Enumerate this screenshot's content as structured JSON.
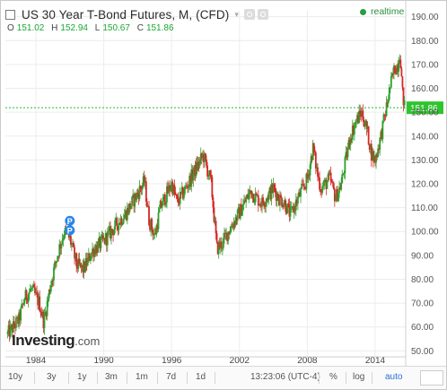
{
  "header": {
    "title": "US 30 Year T-Bond Futures, M, (CFD)",
    "caret_glyph": "▾",
    "realtime": "realtime"
  },
  "ohlc": {
    "o_label": "O",
    "o": "151.02",
    "h_label": "H",
    "h": "152.94",
    "l_label": "L",
    "l": "150.67",
    "c_label": "C",
    "c": "151.86"
  },
  "logo": {
    "name": "Investing",
    "suffix": ".com"
  },
  "bottom_bar": {
    "ranges": [
      "10y",
      "3y",
      "1y",
      "3m",
      "1m",
      "7d",
      "1d"
    ],
    "time": "13:23:06 (UTC-4)",
    "percent": "%",
    "log": "log",
    "auto": "auto"
  },
  "chart_data": {
    "type": "candlestick",
    "symbol": "US 30 Year T-Bond Futures",
    "interval": "M",
    "x_tick_labels": [
      "1984",
      "1990",
      "1996",
      "2002",
      "2008",
      "2014"
    ],
    "x_tick_years": [
      1984,
      1990,
      1996,
      2002,
      2008,
      2014
    ],
    "x_range": [
      1981.3,
      2016.7
    ],
    "y_ticks": [
      50,
      60,
      70,
      80,
      90,
      100,
      110,
      120,
      130,
      140,
      150,
      160,
      170,
      180,
      190
    ],
    "y_tick_labels": [
      "50.00",
      "60.00",
      "70.00",
      "80.00",
      "90.00",
      "100.00",
      "110.00",
      "120.00",
      "130.00",
      "140.00",
      "150.00",
      "160.00",
      "170.00",
      "180.00",
      "190.00"
    ],
    "ylim": [
      47.5,
      192.5
    ],
    "last_price": 151.86,
    "last_price_label": "151.86",
    "grid": true,
    "up_color": "#2ca02c",
    "down_color": "#d62728",
    "price_line_color": "#22bb33",
    "markers": [
      {
        "label": "P",
        "year": 1987.0,
        "value": 104.5
      },
      {
        "label": "P",
        "year": 1987.0,
        "value": 100.5
      }
    ],
    "path_years": [
      1981.5,
      1982.5,
      1983.0,
      1983.6,
      1984.3,
      1984.7,
      1985.3,
      1986.0,
      1986.5,
      1987.0,
      1987.6,
      1988.2,
      1989.0,
      1990.0,
      1991.0,
      1992.0,
      1993.0,
      1993.6,
      1994.0,
      1994.5,
      1995.0,
      1996.0,
      1996.5,
      1997.0,
      1998.0,
      1998.8,
      1999.5,
      2000.0,
      2000.5,
      2001.0,
      2002.0,
      2003.0,
      2003.5,
      2004.0,
      2005.0,
      2005.5,
      2006.0,
      2006.5,
      2007.0,
      2008.0,
      2008.5,
      2008.9,
      2009.2,
      2010.0,
      2010.5,
      2011.0,
      2011.8,
      2012.3,
      2012.8,
      2013.3,
      2013.7,
      2014.0,
      2014.5,
      2015.0,
      2015.3,
      2015.7,
      2016.0,
      2016.2,
      2016.4,
      2016.6
    ],
    "path_values": [
      57,
      63,
      72,
      76,
      70,
      62,
      78,
      92,
      100,
      97,
      86,
      84,
      92,
      96,
      102,
      108,
      116,
      121,
      105,
      98,
      110,
      120,
      112,
      116,
      125,
      132,
      120,
      93,
      95,
      100,
      108,
      117,
      114,
      112,
      118,
      114,
      112,
      107,
      112,
      122,
      135,
      124,
      118,
      122,
      114,
      120,
      140,
      146,
      150,
      142,
      132,
      130,
      140,
      152,
      160,
      168,
      170,
      176,
      158,
      152
    ]
  }
}
